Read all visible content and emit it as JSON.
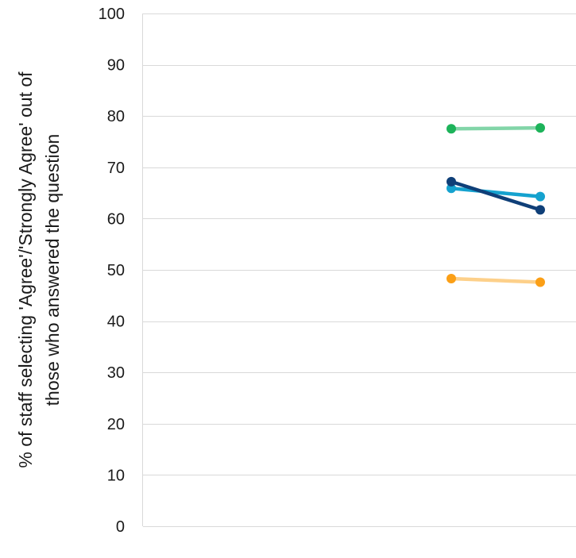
{
  "chart_data": {
    "type": "line",
    "title": "",
    "xlabel": "",
    "ylabel": {
      "line1": "% of staff selecting 'Agree'/'Strongly Agree' out of",
      "line2": "those who answered the question"
    },
    "ylim": [
      0,
      100
    ],
    "yticks": [
      0,
      10,
      20,
      30,
      40,
      50,
      60,
      70,
      80,
      90,
      100
    ],
    "ytick_labels": [
      "0",
      "10",
      "20",
      "30",
      "40",
      "50",
      "60",
      "70",
      "80",
      "90",
      "100"
    ],
    "x_points": 2,
    "grid": true,
    "legend": "none",
    "series": [
      {
        "color": "#82d5a8",
        "marker_color": "#1db35a",
        "values": [
          77.5,
          77.7
        ]
      },
      {
        "color": "#15a2cf",
        "marker_color": "#15a2cf",
        "values": [
          65.9,
          64.3
        ]
      },
      {
        "color": "#0f3f78",
        "marker_color": "#0f3f78",
        "values": [
          67.2,
          61.7
        ]
      },
      {
        "color": "#fdd08a",
        "marker_color": "#fb9f16",
        "values": [
          48.3,
          47.6
        ]
      }
    ]
  }
}
